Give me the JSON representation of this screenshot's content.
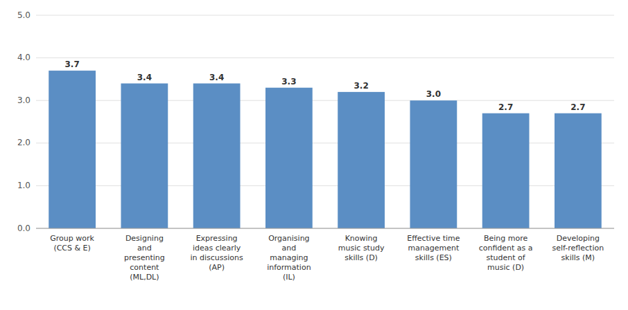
{
  "chart_data": {
    "type": "bar",
    "categories": [
      "Group work\n(CCS & E)",
      "Designing\nand\npresenting\ncontent\n(ML,DL)",
      "Expressing\nideas clearly\nin discussions\n(AP)",
      "Organising\nand\nmanaging\ninformation\n(IL)",
      "Knowing\nmusic study\nskills (D)",
      "Effective time\nmanagement\nskills (ES)",
      "Being more\nconfident as a\nstudent of\nmusic (D)",
      "Developing\nself-reflection\nskills (M)"
    ],
    "values": [
      3.7,
      3.4,
      3.4,
      3.3,
      3.2,
      3.0,
      2.7,
      2.7
    ],
    "value_labels": [
      "3.7",
      "3.4",
      "3.4",
      "3.3",
      "3.2",
      "3.0",
      "2.7",
      "2.7"
    ],
    "data_labels": true,
    "color": "#5b8ec4",
    "ylim": [
      0,
      5.0
    ],
    "yticks": [
      {
        "value": 0.0,
        "label": "0.0"
      },
      {
        "value": 1.0,
        "label": "1.0"
      },
      {
        "value": 2.0,
        "label": "2.0"
      },
      {
        "value": 3.0,
        "label": "3.0"
      },
      {
        "value": 4.0,
        "label": "4.0"
      },
      {
        "value": 5.0,
        "label": "5.0"
      }
    ],
    "grid": true
  }
}
